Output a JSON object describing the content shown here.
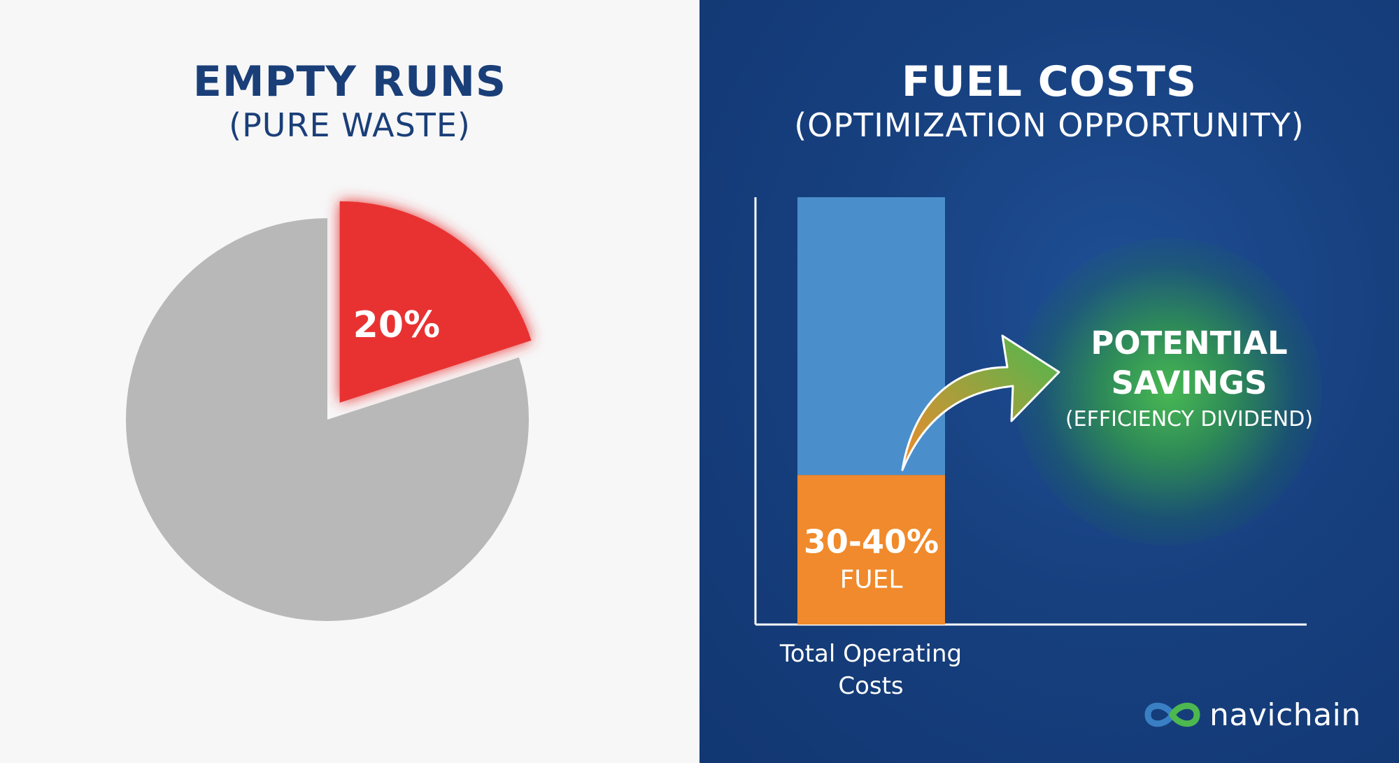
{
  "left": {
    "title": "EMPTY RUNS",
    "subtitle": "(PURE WASTE)"
  },
  "right": {
    "title": "FUEL COSTS",
    "subtitle": "(OPTIMIZATION OPPORTUNITY)",
    "savings_title": "POTENTIAL SAVINGS",
    "savings_sub": "(EFFICIENCY DIVIDEND)"
  },
  "logo": {
    "text": "navichain",
    "icon": "infinity-icon"
  },
  "colors": {
    "pie_highlight": "#e83332",
    "pie_rest": "#b8b8b8",
    "bar_top": "#4a8fcc",
    "bar_fuel": "#f08a2c",
    "arrow_start": "#f08a2c",
    "arrow_end": "#4cb84f"
  },
  "chart_data": [
    {
      "type": "pie",
      "title": "EMPTY RUNS",
      "subtitle": "(PURE WASTE)",
      "slices": [
        {
          "label": "20%",
          "value": 20,
          "exploded": true
        },
        {
          "label": "",
          "value": 80
        }
      ]
    },
    {
      "type": "bar",
      "title": "FUEL COSTS",
      "subtitle": "(OPTIMIZATION OPPORTUNITY)",
      "categories": [
        "Total Operating Costs"
      ],
      "stack": [
        {
          "label": "30-40%",
          "sublabel": "FUEL",
          "value": 35
        },
        {
          "label": "",
          "value": 65
        }
      ],
      "annotation": "POTENTIAL SAVINGS (EFFICIENCY DIVIDEND)"
    }
  ]
}
